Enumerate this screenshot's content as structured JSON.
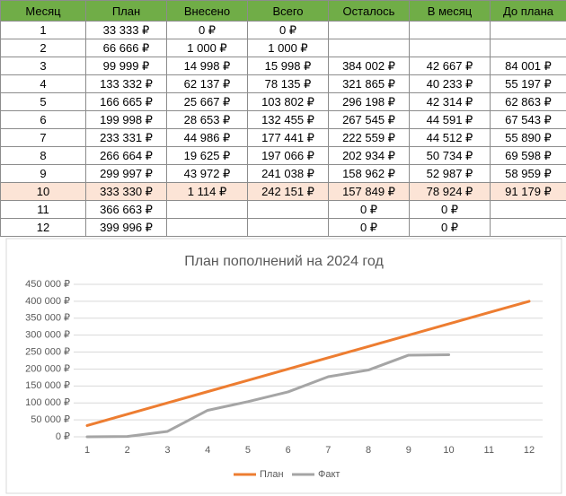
{
  "table": {
    "headers": [
      "Месяц",
      "План",
      "Внесено",
      "Всего",
      "Осталось",
      "В месяц",
      "До плана"
    ],
    "rows": [
      [
        "1",
        "33 333 ₽",
        "0 ₽",
        "0 ₽",
        null,
        null,
        null
      ],
      [
        "2",
        "66 666 ₽",
        "1 000 ₽",
        "1 000 ₽",
        null,
        null,
        null
      ],
      [
        "3",
        "99 999 ₽",
        "14 998 ₽",
        "15 998 ₽",
        "384 002 ₽",
        "42 667 ₽",
        "84 001 ₽"
      ],
      [
        "4",
        "133 332 ₽",
        "62 137 ₽",
        "78 135 ₽",
        "321 865 ₽",
        "40 233 ₽",
        "55 197 ₽"
      ],
      [
        "5",
        "166 665 ₽",
        "25 667 ₽",
        "103 802 ₽",
        "296 198 ₽",
        "42 314 ₽",
        "62 863 ₽"
      ],
      [
        "6",
        "199 998 ₽",
        "28 653 ₽",
        "132 455 ₽",
        "267 545 ₽",
        "44 591 ₽",
        "67 543 ₽"
      ],
      [
        "7",
        "233 331 ₽",
        "44 986 ₽",
        "177 441 ₽",
        "222 559 ₽",
        "44 512 ₽",
        "55 890 ₽"
      ],
      [
        "8",
        "266 664 ₽",
        "19 625 ₽",
        "197 066 ₽",
        "202 934 ₽",
        "50 734 ₽",
        "69 598 ₽"
      ],
      [
        "9",
        "299 997 ₽",
        "43 972 ₽",
        "241 038 ₽",
        "158 962 ₽",
        "52 987 ₽",
        "58 959 ₽"
      ],
      [
        "10",
        "333 330 ₽",
        "1 114 ₽",
        "242 151 ₽",
        "157 849 ₽",
        "78 924 ₽",
        "91 179 ₽"
      ],
      [
        "11",
        "366 663 ₽",
        null,
        null,
        "0 ₽",
        "0 ₽",
        null
      ],
      [
        "12",
        "399 996 ₽",
        null,
        null,
        "0 ₽",
        "0 ₽",
        null
      ]
    ],
    "header_color": "#70ad47",
    "highlight_row": 9,
    "highlight_color": "#fce4d6"
  },
  "chart_data": {
    "type": "line",
    "title": "План пополнений на 2024 год",
    "categories": [
      1,
      2,
      3,
      4,
      5,
      6,
      7,
      8,
      9,
      10,
      11,
      12
    ],
    "series": [
      {
        "name": "План",
        "color": "#ed7d31",
        "values": [
          33333,
          66666,
          99999,
          133332,
          166665,
          199998,
          233331,
          266664,
          299997,
          333330,
          366663,
          399996
        ]
      },
      {
        "name": "Факт",
        "color": "#a5a5a5",
        "values": [
          0,
          1000,
          15998,
          78135,
          103802,
          132455,
          177441,
          197066,
          241038,
          242151,
          null,
          null
        ]
      }
    ],
    "ylim": [
      0,
      450000
    ],
    "yticks": [
      {
        "value": 0,
        "label": "0 ₽"
      },
      {
        "value": 50000,
        "label": "50 000 ₽"
      },
      {
        "value": 100000,
        "label": "100 000 ₽"
      },
      {
        "value": 150000,
        "label": "150 000 ₽"
      },
      {
        "value": 200000,
        "label": "200 000 ₽"
      },
      {
        "value": 250000,
        "label": "250 000 ₽"
      },
      {
        "value": 300000,
        "label": "300 000 ₽"
      },
      {
        "value": 350000,
        "label": "350 000 ₽"
      },
      {
        "value": 400000,
        "label": "400 000 ₽"
      },
      {
        "value": 450000,
        "label": "450 000 ₽"
      }
    ],
    "grid": true,
    "legend": "bottom"
  }
}
